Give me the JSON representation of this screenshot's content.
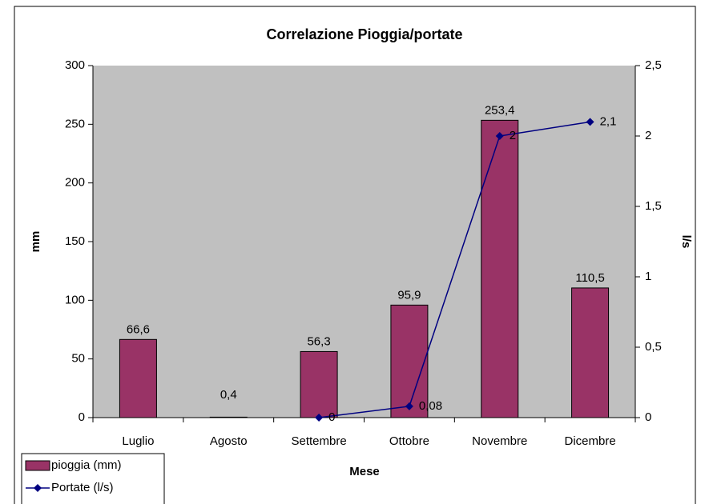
{
  "chart_data": {
    "type": "bar",
    "title": "Correlazione Pioggia/portate",
    "x_label": "Mese",
    "y_label": "mm",
    "y2_label": "l/s",
    "categories": [
      "Luglio",
      "Agosto",
      "Settembre",
      "Ottobre",
      "Novembre",
      "Dicembre"
    ],
    "series": [
      {
        "name": "pioggia (mm)",
        "type": "bar",
        "color": "#993366",
        "values": [
          66.6,
          0.4,
          56.3,
          95.9,
          253.4,
          110.5
        ],
        "value_labels": [
          "66,6",
          "0,4",
          "56,3",
          "95,9",
          "253,4",
          "110,5"
        ]
      },
      {
        "name": "Portate (l/s)",
        "type": "line",
        "axis": "y2",
        "color": "#000080",
        "values": [
          null,
          null,
          0,
          0.08,
          2,
          2.1
        ],
        "value_labels": [
          null,
          null,
          "0",
          "0,08",
          "2",
          "2,1"
        ]
      }
    ],
    "ylim": [
      0,
      300
    ],
    "yticks": [
      0,
      50,
      100,
      150,
      200,
      250,
      300
    ],
    "y2lim": [
      0,
      2.5
    ],
    "y2ticks": [
      0,
      {
        "value": 0.5,
        "label": "0,5"
      },
      1,
      {
        "value": 1.5,
        "label": "1,5"
      },
      2,
      {
        "value": 2.5,
        "label": "2,5"
      }
    ],
    "plot_background": "#c0c0c0",
    "legend": "bottom-left"
  }
}
